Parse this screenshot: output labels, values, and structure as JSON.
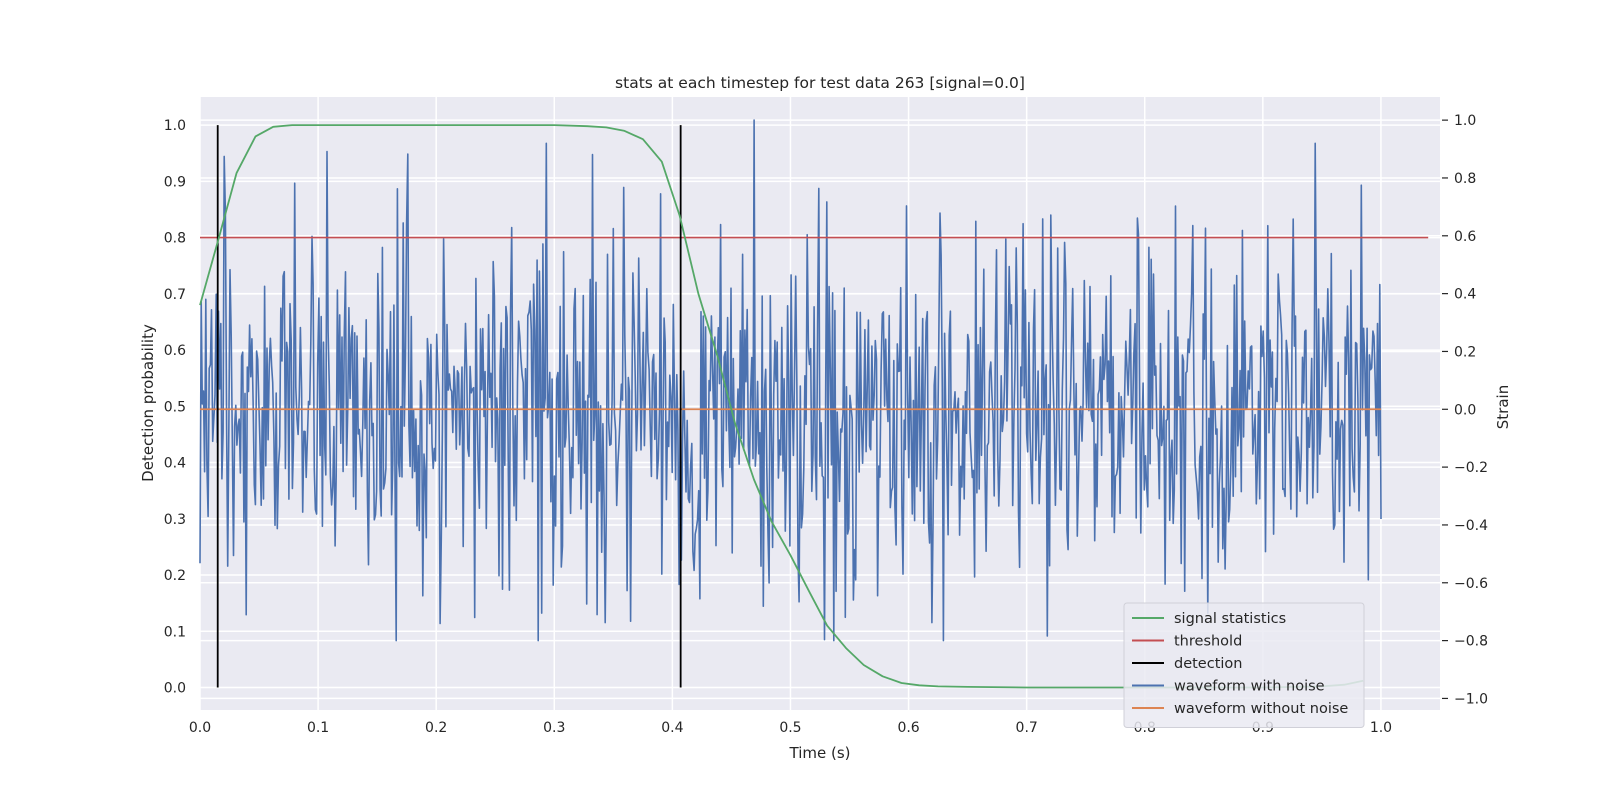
{
  "chart_data": {
    "type": "line",
    "title": "stats at each timestep for test data 263 [signal=0.0]",
    "xlabel": "Time (s)",
    "ylabel_left": "Detection probability",
    "ylabel_right": "Strain",
    "xlim": [
      0.0,
      1.05
    ],
    "ylim_left": [
      -0.04,
      1.05
    ],
    "ylim_right": [
      -1.04,
      1.08
    ],
    "xticks": [
      0.0,
      0.1,
      0.2,
      0.3,
      0.4,
      0.5,
      0.6,
      0.7,
      0.8,
      0.9,
      1.0
    ],
    "yticks_left": [
      0.0,
      0.1,
      0.2,
      0.3,
      0.4,
      0.5,
      0.6,
      0.7,
      0.8,
      0.9,
      1.0
    ],
    "yticks_right": [
      -1.0,
      -0.8,
      -0.6,
      -0.4,
      -0.2,
      0.0,
      0.2,
      0.4,
      0.6,
      0.8,
      1.0
    ],
    "grid": true,
    "legend_placement": "lower-right",
    "colors": {
      "signal_statistics": "#55a868",
      "threshold": "#c44e52",
      "detection": "#000000",
      "waveform_with_noise": "#4c72b0",
      "waveform_without_noise": "#dd8452",
      "plot_background": "#eaeaf2",
      "grid": "#ffffff"
    },
    "series": [
      {
        "name": "signal statistics",
        "axis": "left",
        "x": [
          0.0,
          0.016,
          0.031,
          0.047,
          0.062,
          0.078,
          0.094,
          0.109,
          0.125,
          0.2,
          0.3,
          0.328,
          0.344,
          0.359,
          0.375,
          0.391,
          0.406,
          0.422,
          0.438,
          0.453,
          0.469,
          0.484,
          0.5,
          0.516,
          0.531,
          0.547,
          0.562,
          0.578,
          0.594,
          0.609,
          0.625,
          0.65,
          0.7,
          0.8,
          0.9,
          0.95,
          0.969,
          0.985
        ],
        "y": [
          0.68,
          0.8,
          0.915,
          0.98,
          0.997,
          1.0,
          1.0,
          1.0,
          1.0,
          1.0,
          1.0,
          0.998,
          0.996,
          0.99,
          0.975,
          0.935,
          0.84,
          0.7,
          0.59,
          0.47,
          0.37,
          0.295,
          0.235,
          0.17,
          0.11,
          0.07,
          0.04,
          0.02,
          0.008,
          0.004,
          0.002,
          0.001,
          0.0,
          0.0,
          0.0,
          0.002,
          0.005,
          0.012
        ]
      },
      {
        "name": "threshold",
        "axis": "left",
        "x": [
          0.0,
          1.04
        ],
        "y": [
          0.8,
          0.8
        ]
      },
      {
        "name": "detection",
        "axis": "left",
        "segments": [
          {
            "x": 0.015,
            "y0": 0.0,
            "y1": 1.0
          },
          {
            "x": 0.407,
            "y0": 0.0,
            "y1": 1.0
          }
        ]
      },
      {
        "name": "waveform with noise",
        "axis": "right",
        "x_range": [
          0.0,
          1.0
        ],
        "n_points": 1024,
        "y_range": [
          -1.0,
          1.0
        ],
        "notes": "noise-like strain, amplitude mostly within [-0.75, 0.9], peak 1.0 near x=0.47"
      },
      {
        "name": "waveform without noise",
        "axis": "right",
        "x": [
          0.0,
          1.0
        ],
        "y": [
          0.0,
          0.0
        ]
      }
    ]
  },
  "legend": {
    "items": [
      {
        "label": "signal statistics",
        "color": "#55a868"
      },
      {
        "label": "threshold",
        "color": "#c44e52"
      },
      {
        "label": "detection",
        "color": "#000000"
      },
      {
        "label": "waveform with noise",
        "color": "#4c72b0"
      },
      {
        "label": "waveform without noise",
        "color": "#dd8452"
      }
    ]
  }
}
